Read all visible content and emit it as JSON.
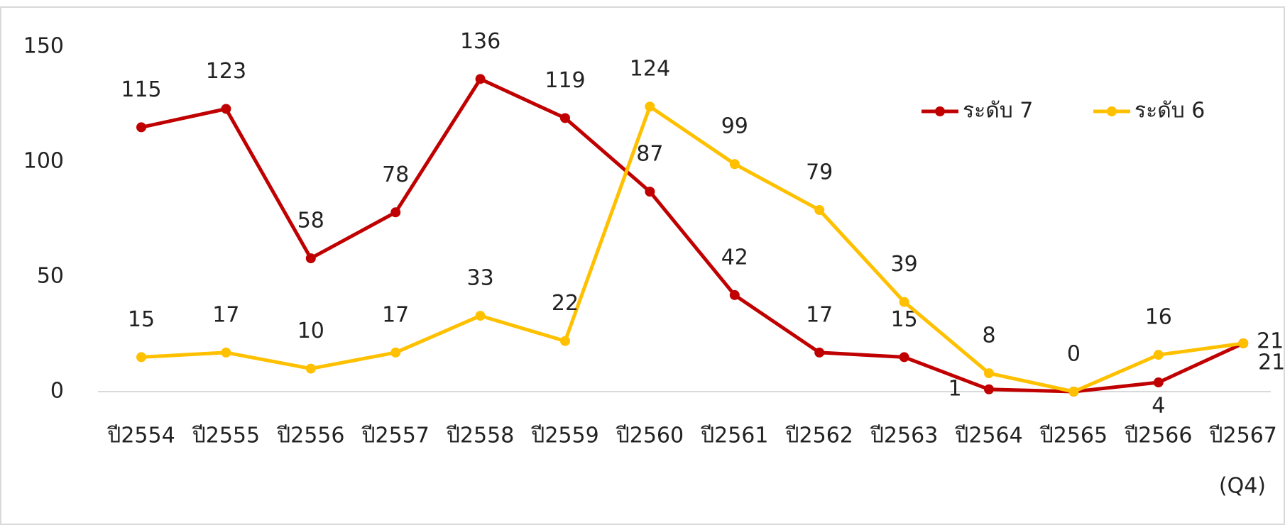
{
  "chart_data": {
    "type": "line",
    "categories": [
      "ปี2554",
      "ปี2555",
      "ปี2556",
      "ปี2557",
      "ปี2558",
      "ปี2559",
      "ปี2560",
      "ปี2561",
      "ปี2562",
      "ปี2563",
      "ปี2564",
      "ปี2565",
      "ปี2566",
      "ปี2567"
    ],
    "x_annotation": "(Q4)",
    "series": [
      {
        "name": "ระดับ 7",
        "color": "#c00000",
        "values": [
          115,
          123,
          58,
          78,
          136,
          119,
          87,
          42,
          17,
          15,
          1,
          0,
          4,
          21
        ],
        "value_labels": [
          "115",
          "123",
          "58",
          "78",
          "136",
          "119",
          "87",
          "42",
          "17",
          "15",
          "1",
          null,
          "4",
          "21"
        ]
      },
      {
        "name": "ระดับ 6",
        "color": "#ffc000",
        "values": [
          15,
          17,
          10,
          17,
          33,
          22,
          124,
          99,
          79,
          39,
          8,
          0,
          16,
          21
        ]
      }
    ],
    "ylim": [
      0,
      150
    ],
    "yticks": [
      0,
      50,
      100,
      150
    ],
    "grid": false,
    "legend": "upper right"
  }
}
